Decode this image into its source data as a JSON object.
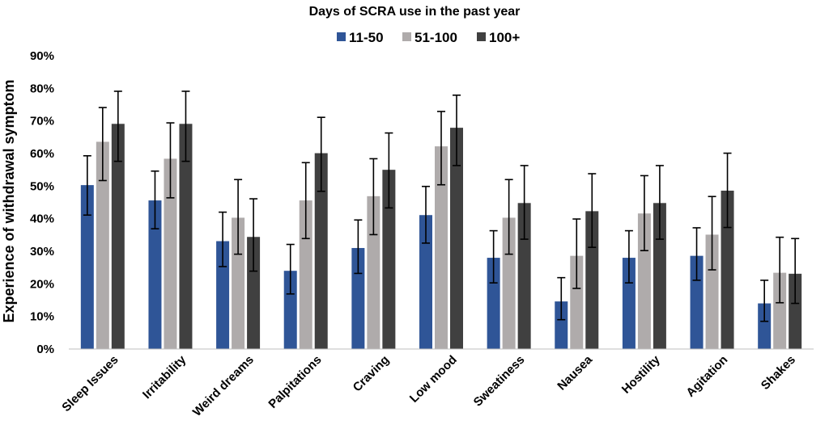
{
  "chart_data": {
    "type": "bar",
    "title": "Days of SCRA use in the past year",
    "ylabel": "Experience of withdrawal symptom",
    "xlabel": "",
    "ylim": [
      0,
      90
    ],
    "yticks": [
      0,
      10,
      20,
      30,
      40,
      50,
      60,
      70,
      80,
      90
    ],
    "y_tick_format": "percent",
    "grid": false,
    "legend_position": "top-center",
    "categories": [
      "Sleep Issues",
      "Irritability",
      "Weird dreams",
      "Palpitations",
      "Craving",
      "Low mood",
      "Sweatiness",
      "Nausea",
      "Hostility",
      "Agitation",
      "Shakes"
    ],
    "series": [
      {
        "name": "11-50",
        "color": "#2F5597",
        "values": [
          50.3,
          45.6,
          33.1,
          24.0,
          31.0,
          41.1,
          28.0,
          14.6,
          28.0,
          28.6,
          14.0
        ],
        "err_low": [
          41.1,
          36.9,
          25.3,
          16.9,
          23.2,
          32.5,
          20.3,
          9.0,
          20.3,
          21.1,
          8.5
        ],
        "err_high": [
          59.3,
          54.6,
          42.0,
          32.1,
          39.6,
          49.9,
          36.3,
          21.9,
          36.3,
          37.2,
          21.1
        ]
      },
      {
        "name": "51-100",
        "color": "#AFABAB",
        "values": [
          63.6,
          58.4,
          40.3,
          45.6,
          46.9,
          62.2,
          40.3,
          28.6,
          41.6,
          35.1,
          23.4
        ],
        "err_low": [
          51.7,
          46.4,
          29.1,
          33.9,
          35.1,
          50.4,
          29.1,
          18.6,
          30.2,
          24.3,
          14.2
        ],
        "err_high": [
          74.1,
          69.4,
          52.0,
          57.2,
          58.4,
          72.9,
          52.0,
          39.9,
          53.2,
          46.8,
          34.3
        ]
      },
      {
        "name": "100+",
        "color": "#404040",
        "values": [
          69.1,
          69.1,
          34.4,
          60.1,
          55.0,
          67.9,
          44.8,
          42.3,
          44.8,
          48.6,
          23.1
        ],
        "err_low": [
          57.6,
          57.6,
          23.9,
          48.4,
          43.3,
          56.3,
          33.7,
          31.2,
          33.7,
          37.3,
          14.0
        ],
        "err_high": [
          79.1,
          79.1,
          46.1,
          71.1,
          66.3,
          77.9,
          56.3,
          53.8,
          56.3,
          60.1,
          33.9
        ]
      }
    ]
  }
}
